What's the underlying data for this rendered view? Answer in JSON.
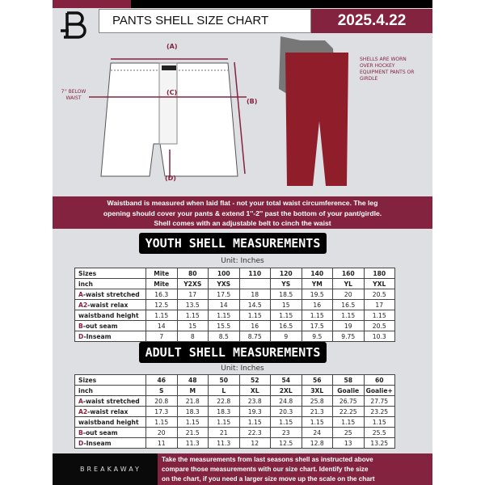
{
  "header": {
    "title": "PANTS SHELL SIZE CHART",
    "date": "2025.4.22"
  },
  "diagram": {
    "label_a": "(A)",
    "label_b": "(B)",
    "label_c": "(C)",
    "label_d": "(D)",
    "below_waist": "7'' BELOW WAIST",
    "note": "SHELLS ARE WORN OVER HOCKEY EQUIPMENT PANTS OR GIRDLE"
  },
  "info_band": [
    "Waistband is measured when laid flat - not your total waist circumference. The leg",
    "opening should cover your pants & extend 1''-2'' past the bottom of your pant/girdle.",
    "Shell comes with an adjustable belt to cinch the waist"
  ],
  "youth": {
    "title": "YOUTH SHELL MEASUREMENTS",
    "unit": "Unit: Inches",
    "rows": [
      [
        "",
        "Sizes",
        "Mite",
        "80",
        "100",
        "110",
        "120",
        "140",
        "160",
        "180"
      ],
      [
        "",
        "inch",
        "Mite",
        "Y2XS",
        "YXS",
        "",
        "YS",
        "YM",
        "YL",
        "YXL"
      ],
      [
        "A",
        "-waist stretched",
        "16.3",
        "17",
        "17.5",
        "18",
        "18.5",
        "19.5",
        "20",
        "20.5"
      ],
      [
        "A2",
        "-waist relax",
        "12.5",
        "13.5",
        "14",
        "14.5",
        "15",
        "16",
        "16.5",
        "17"
      ],
      [
        "",
        "waistband height",
        "1.15",
        "1.15",
        "1.15",
        "1.15",
        "1.15",
        "1.15",
        "1.15",
        "1.15"
      ],
      [
        "B",
        "-out seam",
        "14",
        "15",
        "15.5",
        "16",
        "16.5",
        "17.5",
        "19",
        "20.5"
      ],
      [
        "D",
        "-Inseam",
        "7",
        "8",
        "8.5",
        "8.75",
        "9",
        "9.5",
        "9.75",
        "10.3"
      ]
    ]
  },
  "adult": {
    "title": "ADULT SHELL MEASUREMENTS",
    "unit": "Unit: Inches",
    "rows": [
      [
        "",
        "Sizes",
        "46",
        "48",
        "50",
        "52",
        "54",
        "56",
        "58",
        "60"
      ],
      [
        "",
        "inch",
        "S",
        "M",
        "L",
        "XL",
        "2XL",
        "3XL",
        "Goalie",
        "Goalie+"
      ],
      [
        "A",
        "-waist stretched",
        "20.8",
        "21.8",
        "22.8",
        "23.8",
        "24.8",
        "25.8",
        "26.75",
        "27.75"
      ],
      [
        "A2",
        "-waist relax",
        "17.3",
        "18.3",
        "18.3",
        "19.3",
        "20.3",
        "21.3",
        "22.25",
        "23.25"
      ],
      [
        "",
        "waistband height",
        "1.15",
        "1.15",
        "1.15",
        "1.15",
        "1.15",
        "1.15",
        "1.15",
        "1.15"
      ],
      [
        "B",
        "-out seam",
        "20",
        "21.5",
        "21",
        "22.3",
        "23",
        "24",
        "25",
        "25.5"
      ],
      [
        "D",
        "-Inseam",
        "11",
        "11.3",
        "11.3",
        "12",
        "12.5",
        "12.8",
        "13",
        "13.25"
      ]
    ]
  },
  "footer": {
    "brand": "BREAKAWAY",
    "instructions": [
      "Take the measurements from last seasons shell as instructed above",
      "compare those measurements  with our size chart. Identify the size",
      "on the chart, if you need a larger size move up the scale on the chart"
    ]
  },
  "colors": {
    "accent": "#83233f",
    "background": "#dedfe3"
  }
}
